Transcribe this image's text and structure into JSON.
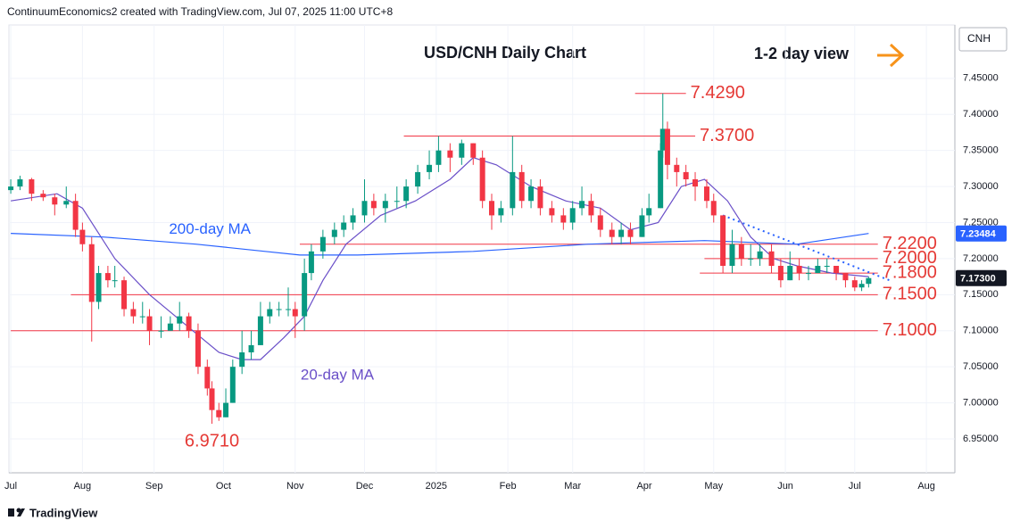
{
  "header": "ContinuumEconomics2 created with TradingView.com, Jul 07, 2025 11:00 UTC+8",
  "footer": "TradingView",
  "chart_data": {
    "type": "candlestick",
    "title": "USD/CNH Daily Chart",
    "subtitle": "1-2 day view",
    "symbol": "CNH",
    "up_color": "#089981",
    "down_color": "#f23645",
    "xlim": [
      -0.8,
      408.3
    ],
    "xticks": [
      {
        "value": 0,
        "label": "Jul"
      },
      {
        "value": 31,
        "label": "Aug"
      },
      {
        "value": 62,
        "label": "Sep"
      },
      {
        "value": 92,
        "label": "Oct"
      },
      {
        "value": 123,
        "label": "Nov"
      },
      {
        "value": 153,
        "label": "Dec"
      },
      {
        "value": 184,
        "label": "2025"
      },
      {
        "value": 215,
        "label": "Feb"
      },
      {
        "value": 243,
        "label": "Mar"
      },
      {
        "value": 274,
        "label": "Apr"
      },
      {
        "value": 304,
        "label": "May"
      },
      {
        "value": 335,
        "label": "Jun"
      },
      {
        "value": 365,
        "label": "Jul"
      },
      {
        "value": 396,
        "label": "Aug"
      }
    ],
    "ylim": [
      6.903,
      7.524
    ],
    "yticks": [
      {
        "value": 6.95,
        "label": "6.95000"
      },
      {
        "value": 7.0,
        "label": "7.00000"
      },
      {
        "value": 7.05,
        "label": "7.05000"
      },
      {
        "value": 7.1,
        "label": "7.10000"
      },
      {
        "value": 7.15,
        "label": "7.15000"
      },
      {
        "value": 7.2,
        "label": "7.20000"
      },
      {
        "value": 7.25,
        "label": "7.25000"
      },
      {
        "value": 7.3,
        "label": "7.30000"
      },
      {
        "value": 7.35,
        "label": "7.35000"
      },
      {
        "value": 7.4,
        "label": "7.40000"
      },
      {
        "value": 7.45,
        "label": "7.45000"
      }
    ],
    "grid": true,
    "candles": [
      [
        0,
        7.295,
        7.31,
        7.29,
        7.3
      ],
      [
        4,
        7.3,
        7.315,
        7.295,
        7.31
      ],
      [
        9,
        7.31,
        7.312,
        7.28,
        7.29
      ],
      [
        14,
        7.29,
        7.295,
        7.28,
        7.285
      ],
      [
        19,
        7.285,
        7.29,
        7.26,
        7.275
      ],
      [
        24,
        7.275,
        7.3,
        7.27,
        7.28
      ],
      [
        28,
        7.28,
        7.29,
        7.23,
        7.24
      ],
      [
        31,
        7.24,
        7.25,
        7.21,
        7.22
      ],
      [
        35,
        7.22,
        7.23,
        7.085,
        7.14
      ],
      [
        38,
        7.14,
        7.19,
        7.13,
        7.18
      ],
      [
        42,
        7.18,
        7.19,
        7.16,
        7.17
      ],
      [
        45,
        7.17,
        7.19,
        7.16,
        7.17
      ],
      [
        49,
        7.17,
        7.175,
        7.12,
        7.13
      ],
      [
        53,
        7.13,
        7.14,
        7.11,
        7.12
      ],
      [
        57,
        7.12,
        7.14,
        7.11,
        7.12
      ],
      [
        60,
        7.12,
        7.13,
        7.08,
        7.1
      ],
      [
        65,
        7.1,
        7.12,
        7.09,
        7.1
      ],
      [
        69,
        7.1,
        7.12,
        7.1,
        7.11
      ],
      [
        73,
        7.11,
        7.14,
        7.1,
        7.12
      ],
      [
        77,
        7.12,
        7.125,
        7.09,
        7.1
      ],
      [
        81,
        7.1,
        7.11,
        7.04,
        7.05
      ],
      [
        85,
        7.05,
        7.06,
        7.01,
        7.02
      ],
      [
        87,
        7.02,
        7.03,
        6.971,
        6.99
      ],
      [
        90,
        6.99,
        7.0,
        6.975,
        6.98
      ],
      [
        93,
        6.98,
        7.02,
        6.98,
        7.0
      ],
      [
        96,
        7.0,
        7.06,
        7.0,
        7.05
      ],
      [
        100,
        7.05,
        7.1,
        7.04,
        7.07
      ],
      [
        104,
        7.07,
        7.1,
        7.06,
        7.08
      ],
      [
        108,
        7.08,
        7.14,
        7.08,
        7.12
      ],
      [
        112,
        7.12,
        7.14,
        7.11,
        7.13
      ],
      [
        116,
        7.13,
        7.14,
        7.12,
        7.13
      ],
      [
        120,
        7.13,
        7.16,
        7.12,
        7.13
      ],
      [
        123,
        7.13,
        7.14,
        7.09,
        7.12
      ],
      [
        127,
        7.12,
        7.2,
        7.1,
        7.18
      ],
      [
        130,
        7.18,
        7.22,
        7.17,
        7.21
      ],
      [
        135,
        7.21,
        7.24,
        7.2,
        7.23
      ],
      [
        140,
        7.23,
        7.25,
        7.22,
        7.24
      ],
      [
        144,
        7.24,
        7.26,
        7.23,
        7.25
      ],
      [
        148,
        7.25,
        7.27,
        7.24,
        7.26
      ],
      [
        153,
        7.26,
        7.31,
        7.25,
        7.28
      ],
      [
        157,
        7.28,
        7.29,
        7.26,
        7.27
      ],
      [
        162,
        7.27,
        7.29,
        7.25,
        7.28
      ],
      [
        167,
        7.28,
        7.3,
        7.27,
        7.28
      ],
      [
        171,
        7.28,
        7.31,
        7.27,
        7.3
      ],
      [
        176,
        7.3,
        7.33,
        7.29,
        7.32
      ],
      [
        181,
        7.32,
        7.35,
        7.31,
        7.33
      ],
      [
        185,
        7.33,
        7.37,
        7.32,
        7.35
      ],
      [
        190,
        7.35,
        7.36,
        7.32,
        7.34
      ],
      [
        195,
        7.34,
        7.365,
        7.33,
        7.36
      ],
      [
        200,
        7.36,
        7.36,
        7.33,
        7.34
      ],
      [
        204,
        7.34,
        7.35,
        7.27,
        7.28
      ],
      [
        208,
        7.28,
        7.29,
        7.24,
        7.26
      ],
      [
        212,
        7.26,
        7.28,
        7.25,
        7.27
      ],
      [
        217,
        7.27,
        7.37,
        7.26,
        7.32
      ],
      [
        221,
        7.32,
        7.33,
        7.27,
        7.28
      ],
      [
        225,
        7.28,
        7.31,
        7.27,
        7.3
      ],
      [
        229,
        7.3,
        7.31,
        7.26,
        7.27
      ],
      [
        234,
        7.27,
        7.28,
        7.25,
        7.26
      ],
      [
        239,
        7.26,
        7.27,
        7.24,
        7.25
      ],
      [
        243,
        7.25,
        7.28,
        7.24,
        7.27
      ],
      [
        247,
        7.27,
        7.3,
        7.26,
        7.28
      ],
      [
        251,
        7.28,
        7.29,
        7.25,
        7.26
      ],
      [
        255,
        7.26,
        7.27,
        7.23,
        7.24
      ],
      [
        260,
        7.24,
        7.25,
        7.22,
        7.23
      ],
      [
        264,
        7.23,
        7.25,
        7.22,
        7.24
      ],
      [
        268,
        7.24,
        7.25,
        7.22,
        7.23
      ],
      [
        273,
        7.23,
        7.27,
        7.23,
        7.26
      ],
      [
        276,
        7.26,
        7.29,
        7.25,
        7.27
      ],
      [
        281,
        7.27,
        7.36,
        7.27,
        7.35
      ],
      [
        282,
        7.35,
        7.429,
        7.34,
        7.38
      ],
      [
        284,
        7.38,
        7.39,
        7.31,
        7.33
      ],
      [
        288,
        7.33,
        7.34,
        7.3,
        7.32
      ],
      [
        292,
        7.32,
        7.33,
        7.3,
        7.31
      ],
      [
        296,
        7.31,
        7.32,
        7.28,
        7.3
      ],
      [
        301,
        7.3,
        7.31,
        7.27,
        7.28
      ],
      [
        304,
        7.28,
        7.29,
        7.25,
        7.26
      ],
      [
        308,
        7.26,
        7.26,
        7.18,
        7.19
      ],
      [
        312,
        7.19,
        7.24,
        7.18,
        7.22
      ],
      [
        316,
        7.22,
        7.23,
        7.19,
        7.2
      ],
      [
        320,
        7.2,
        7.22,
        7.19,
        7.2
      ],
      [
        324,
        7.2,
        7.22,
        7.19,
        7.21
      ],
      [
        329,
        7.21,
        7.22,
        7.18,
        7.19
      ],
      [
        333,
        7.19,
        7.2,
        7.16,
        7.17
      ],
      [
        337,
        7.17,
        7.21,
        7.17,
        7.19
      ],
      [
        341,
        7.19,
        7.2,
        7.17,
        7.18
      ],
      [
        345,
        7.18,
        7.19,
        7.17,
        7.18
      ],
      [
        349,
        7.18,
        7.2,
        7.18,
        7.19
      ],
      [
        353,
        7.19,
        7.2,
        7.18,
        7.19
      ],
      [
        357,
        7.19,
        7.19,
        7.17,
        7.18
      ],
      [
        361,
        7.18,
        7.18,
        7.16,
        7.17
      ],
      [
        365,
        7.17,
        7.175,
        7.155,
        7.16
      ],
      [
        368,
        7.16,
        7.17,
        7.155,
        7.165
      ],
      [
        371,
        7.165,
        7.175,
        7.16,
        7.173
      ]
    ],
    "series": [
      {
        "name": "20-day MA",
        "color": "#6a4fc8",
        "x": [
          0,
          20,
          31,
          45,
          60,
          75,
          90,
          100,
          108,
          118,
          127,
          135,
          145,
          160,
          175,
          190,
          200,
          210,
          225,
          240,
          255,
          268,
          280,
          290,
          300,
          310,
          320,
          330,
          340,
          355,
          371
        ],
        "values": [
          7.28,
          7.29,
          7.27,
          7.2,
          7.15,
          7.11,
          7.07,
          7.06,
          7.06,
          7.09,
          7.12,
          7.17,
          7.22,
          7.26,
          7.28,
          7.31,
          7.34,
          7.33,
          7.3,
          7.28,
          7.27,
          7.24,
          7.25,
          7.3,
          7.31,
          7.28,
          7.23,
          7.2,
          7.19,
          7.18,
          7.175
        ]
      },
      {
        "name": "200-day MA",
        "color": "#2962ff",
        "x": [
          0,
          40,
          80,
          110,
          125,
          150,
          200,
          250,
          300,
          340,
          371
        ],
        "values": [
          7.235,
          7.23,
          7.22,
          7.21,
          7.205,
          7.205,
          7.21,
          7.22,
          7.225,
          7.22,
          7.23484
        ]
      }
    ],
    "trendline": {
      "color": "#2962ff",
      "x": [
        308,
        380
      ],
      "values": [
        7.26,
        7.17
      ]
    },
    "levels": [
      {
        "value": 7.429,
        "label": "7.4290",
        "from": 270,
        "to": 292
      },
      {
        "value": 7.37,
        "label": "7.3700",
        "from": 170,
        "to": 296
      },
      {
        "value": 7.22,
        "label": "7.2200",
        "from": 125,
        "to": 375
      },
      {
        "value": 7.2,
        "label": "7.2000",
        "from": 300,
        "to": 375
      },
      {
        "value": 7.18,
        "label": "7.1800",
        "from": 298,
        "to": 375
      },
      {
        "value": 7.15,
        "label": "7.1500",
        "from": 26,
        "to": 375
      },
      {
        "value": 7.1,
        "label": "7.1000",
        "from": 0,
        "to": 375
      }
    ],
    "low_label": {
      "value": 6.971,
      "label": "6.9710",
      "x": 87
    },
    "badges": [
      {
        "value": 7.23484,
        "color": "#2962ff"
      },
      {
        "value": 7.173,
        "label": "7.17300",
        "color": "#131722"
      }
    ]
  }
}
